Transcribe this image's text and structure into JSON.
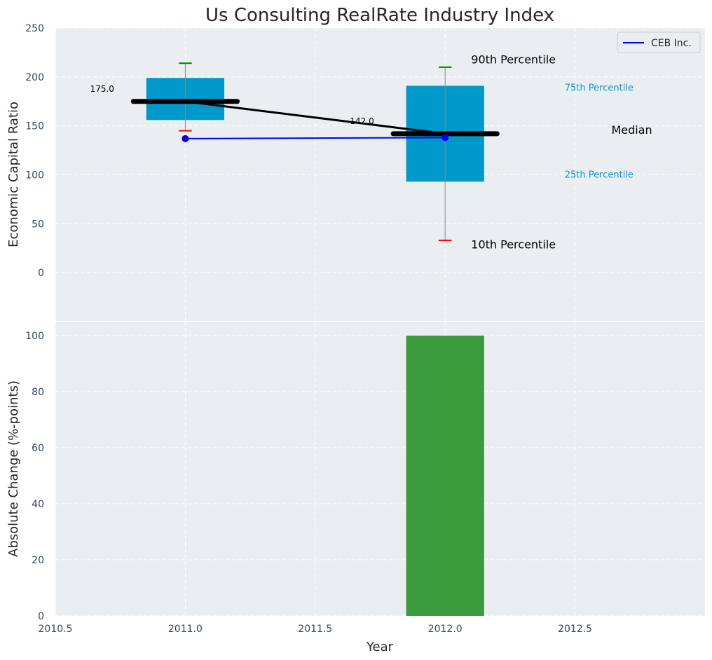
{
  "chart_data": [
    {
      "type": "box",
      "title": "Us Consulting RealRate Industry Index",
      "xlabel": "",
      "ylabel": "Economic Capital Ratio",
      "xlim": [
        2010.5,
        2013.0
      ],
      "ylim": [
        -50,
        250
      ],
      "yticks": [
        0,
        50,
        100,
        150,
        200,
        250
      ],
      "grid": true,
      "legend": {
        "placement": "top-right",
        "entries": [
          {
            "label": "CEB Inc.",
            "color": "#0000ff"
          }
        ]
      },
      "boxes": [
        {
          "x": 2011.0,
          "p10": 145,
          "p25": 156,
          "median": 175,
          "p75": 199,
          "p90": 214,
          "median_label": "175.0"
        },
        {
          "x": 2012.0,
          "p10": 33,
          "p25": 93,
          "median": 142,
          "p75": 191,
          "p90": 210,
          "median_label": "142.0"
        }
      ],
      "box_color": "#0099cc",
      "whisker_top_color": "#008000",
      "whisker_bottom_color": "#ff0000",
      "median_line": {
        "x": [
          2011.0,
          2012.0
        ],
        "y": [
          175,
          142
        ],
        "color": "#000000"
      },
      "series": [
        {
          "name": "CEB Inc.",
          "x": [
            2011.0,
            2012.0
          ],
          "y": [
            137,
            138
          ],
          "color": "#0000ff"
        }
      ],
      "annotations": [
        {
          "text": "90th Percentile",
          "x": 2012.1,
          "y": 214,
          "color": "#000000",
          "size": "large"
        },
        {
          "text": "75th Percentile",
          "x": 2012.46,
          "y": 186,
          "color": "#0099cc",
          "size": "small"
        },
        {
          "text": "Median",
          "x": 2012.64,
          "y": 142,
          "color": "#000000",
          "size": "large"
        },
        {
          "text": "25th Percentile",
          "x": 2012.46,
          "y": 97,
          "color": "#0099cc",
          "size": "small"
        },
        {
          "text": "10th Percentile",
          "x": 2012.1,
          "y": 25,
          "color": "#000000",
          "size": "large"
        }
      ]
    },
    {
      "type": "bar",
      "xlabel": "Year",
      "ylabel": "Absolute Change (%-points)",
      "xlim": [
        2010.5,
        2013.0
      ],
      "xticks": [
        "2010.5",
        "2011.0",
        "2011.5",
        "2012.0",
        "2012.5"
      ],
      "ylim": [
        0,
        105
      ],
      "yticks": [
        0,
        20,
        40,
        60,
        80,
        100
      ],
      "grid": true,
      "bars": [
        {
          "x": 2012.0,
          "value": 100,
          "color": "#3a9b3c"
        }
      ]
    }
  ]
}
